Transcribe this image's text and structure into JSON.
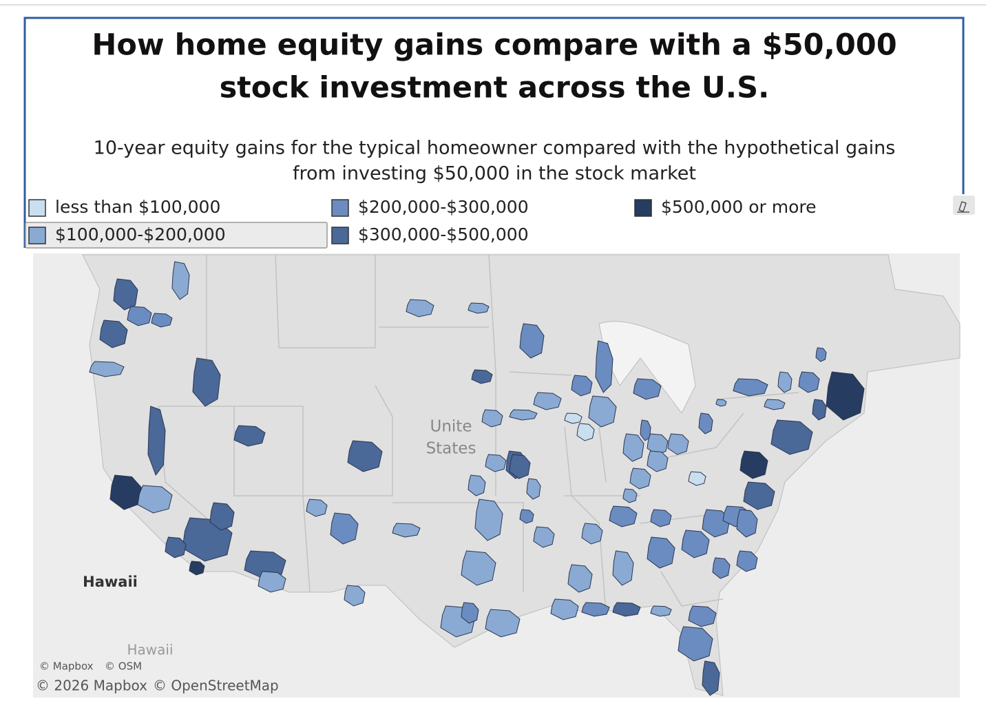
{
  "header": {
    "title": [
      "How home equity gains compare with a $50,000",
      "stock investment across the U.S."
    ],
    "subtitle": [
      "10-year equity gains for the typical homeowner compared with the hypothetical gains",
      "from investing $50,000 in the stock market"
    ]
  },
  "legend": {
    "items": [
      {
        "label": "less than $100,000",
        "color": "#c9dff0"
      },
      {
        "label": "$100,000-$200,000",
        "color": "#8aaad3"
      },
      {
        "label": "$200,000-$300,000",
        "color": "#6b8cc0"
      },
      {
        "label": "$300,000-$500,000",
        "color": "#4a6898"
      },
      {
        "label": "$500,000 or more",
        "color": "#263c60"
      }
    ]
  },
  "map": {
    "labels": [
      "Unite",
      "States",
      "Hawaii",
      "Hawaii"
    ],
    "attribution": {
      "small": [
        "© Mapbox",
        "© OSM"
      ],
      "large": [
        "© 2026 Mapbox",
        "© OpenStreetMap"
      ]
    }
  }
}
